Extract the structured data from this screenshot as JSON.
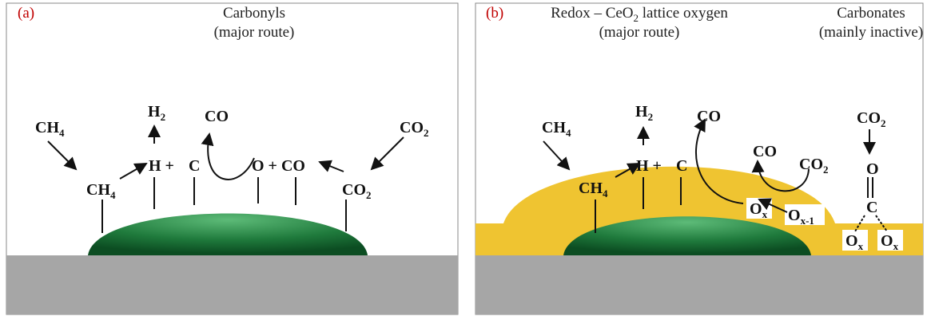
{
  "panels": [
    {
      "label": "(a)",
      "title": {
        "line1": "Carbonyls",
        "line2": "(major route)"
      },
      "species": [
        {
          "base": "CH",
          "sub": "4"
        },
        {
          "base": "CH",
          "sub": "4"
        },
        {
          "base": "H",
          "sub": "2"
        },
        {
          "base": "H +"
        },
        {
          "base": "C"
        },
        {
          "base": "CO"
        },
        {
          "base": "O + CO"
        },
        {
          "base": "CO",
          "sub": "2"
        },
        {
          "base": "CO",
          "sub": "2"
        }
      ]
    },
    {
      "label": "(b)",
      "title": {
        "line1": {
          "pre": "Redox – CeO",
          "sub": "2",
          "post": " lattice oxygen"
        },
        "line2": "(major route)"
      },
      "side_title": {
        "line1": "Carbonates",
        "line2": "(mainly inactive)"
      },
      "species": [
        {
          "base": "CH",
          "sub": "4"
        },
        {
          "base": "CH",
          "sub": "4"
        },
        {
          "base": "H",
          "sub": "2"
        },
        {
          "base": "H +"
        },
        {
          "base": "C"
        },
        {
          "base": "CO"
        },
        {
          "base": "CO"
        },
        {
          "base": "CO",
          "sub": "2"
        },
        {
          "base": "O",
          "sub": "x"
        },
        {
          "base": "O",
          "sub": "x-1"
        },
        {
          "base": "CO",
          "sub": "2"
        },
        {
          "base": "O"
        },
        {
          "base": "C"
        },
        {
          "base": "O",
          "sub": "x"
        },
        {
          "base": "O",
          "sub": "x"
        }
      ]
    }
  ]
}
